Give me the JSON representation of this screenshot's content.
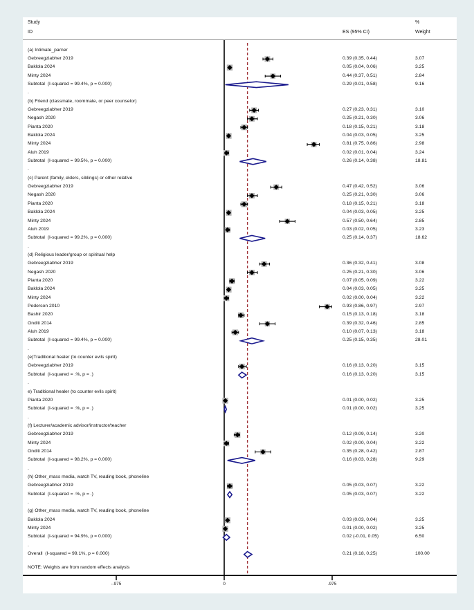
{
  "header": {
    "study": "Study",
    "id": "ID",
    "es": "ES (95% CI)",
    "pct": "%",
    "weight": "Weight"
  },
  "note": "NOTE: Weights are from random effects analysis",
  "colors": {
    "background": "#e6eef0",
    "figure": "#ffffff",
    "axis": "#000000",
    "zero_line": "#000000",
    "dashed_overall_line": "#a03238",
    "diamond_outline": "#1b1b8e",
    "weight_box": "#b5b5b5",
    "text": "#111111"
  },
  "chart_data": {
    "type": "forest",
    "xticks": [
      -0.975,
      0,
      0.975
    ],
    "tick_labels": [
      "-.975",
      "0",
      ".975"
    ],
    "zero_line": 0,
    "dashed_line_at": 0.21,
    "legend_position": "none",
    "grid": false,
    "groups": [
      {
        "label": "(a) Intimate_parner",
        "studies": [
          {
            "label": "Gebreegziabher 2019",
            "es": 0.39,
            "lo": 0.35,
            "hi": 0.44,
            "weight": 3.07,
            "es_text": "0.39 (0.35, 0.44)",
            "weight_text": "3.07"
          },
          {
            "label": "Baklola 2024",
            "es": 0.05,
            "lo": 0.04,
            "hi": 0.06,
            "weight": 3.25,
            "es_text": "0.05 (0.04, 0.06)",
            "weight_text": "3.25"
          },
          {
            "label": "Minty 2024",
            "es": 0.44,
            "lo": 0.37,
            "hi": 0.51,
            "weight": 2.84,
            "es_text": "0.44 (0.37, 0.51)",
            "weight_text": "2.84"
          }
        ],
        "subtotal": {
          "label": "Subtotal  (I-squared = 99.4%, p = 0.000)",
          "es": 0.29,
          "lo": 0.01,
          "hi": 0.58,
          "es_text": "0.29 (0.01, 0.58)",
          "weight_text": "9.16"
        }
      },
      {
        "label": "(b) Friend (classmate, roommate, or peer counselor)",
        "studies": [
          {
            "label": "Gebreegziabher 2019",
            "es": 0.27,
            "lo": 0.23,
            "hi": 0.31,
            "weight": 3.1,
            "es_text": "0.27 (0.23, 0.31)",
            "weight_text": "3.10"
          },
          {
            "label": "Negash 2020",
            "es": 0.25,
            "lo": 0.21,
            "hi": 0.3,
            "weight": 3.06,
            "es_text": "0.25 (0.21, 0.30)",
            "weight_text": "3.06"
          },
          {
            "label": "Pianta 2020",
            "es": 0.18,
            "lo": 0.15,
            "hi": 0.21,
            "weight": 3.18,
            "es_text": "0.18 (0.15, 0.21)",
            "weight_text": "3.18"
          },
          {
            "label": "Baklola 2024",
            "es": 0.04,
            "lo": 0.03,
            "hi": 0.05,
            "weight": 3.25,
            "es_text": "0.04 (0.03, 0.05)",
            "weight_text": "3.25"
          },
          {
            "label": "Minty 2024",
            "es": 0.81,
            "lo": 0.75,
            "hi": 0.86,
            "weight": 2.98,
            "es_text": "0.81 (0.75, 0.86)",
            "weight_text": "2.98"
          },
          {
            "label": "Aluh 2019",
            "es": 0.02,
            "lo": 0.01,
            "hi": 0.04,
            "weight": 3.24,
            "es_text": "0.02 (0.01, 0.04)",
            "weight_text": "3.24"
          }
        ],
        "subtotal": {
          "label": "Subtotal  (I-squared = 99.5%, p = 0.000)",
          "es": 0.26,
          "lo": 0.14,
          "hi": 0.38,
          "es_text": "0.26 (0.14, 0.38)",
          "weight_text": "18.81"
        }
      },
      {
        "label": "(c) Parent (family, elders, siblings) or other relative",
        "studies": [
          {
            "label": "Gebreegziabher 2019",
            "es": 0.47,
            "lo": 0.42,
            "hi": 0.52,
            "weight": 3.06,
            "es_text": "0.47 (0.42, 0.52)",
            "weight_text": "3.06"
          },
          {
            "label": "Negash 2020",
            "es": 0.25,
            "lo": 0.21,
            "hi": 0.3,
            "weight": 3.06,
            "es_text": "0.25 (0.21, 0.30)",
            "weight_text": "3.06"
          },
          {
            "label": "Pianta 2020",
            "es": 0.18,
            "lo": 0.15,
            "hi": 0.21,
            "weight": 3.18,
            "es_text": "0.18 (0.15, 0.21)",
            "weight_text": "3.18"
          },
          {
            "label": "Baklola 2024",
            "es": 0.04,
            "lo": 0.03,
            "hi": 0.05,
            "weight": 3.25,
            "es_text": "0.04 (0.03, 0.05)",
            "weight_text": "3.25"
          },
          {
            "label": "Minty 2024",
            "es": 0.57,
            "lo": 0.5,
            "hi": 0.64,
            "weight": 2.85,
            "es_text": "0.57 (0.50, 0.64)",
            "weight_text": "2.85"
          },
          {
            "label": "Aluh 2019",
            "es": 0.03,
            "lo": 0.02,
            "hi": 0.05,
            "weight": 3.23,
            "es_text": "0.03 (0.02, 0.05)",
            "weight_text": "3.23"
          }
        ],
        "subtotal": {
          "label": "Subtotal  (I-squared = 99.2%, p = 0.000)",
          "es": 0.25,
          "lo": 0.14,
          "hi": 0.37,
          "es_text": "0.25 (0.14, 0.37)",
          "weight_text": "18.62"
        }
      },
      {
        "label": "(d) Religious leader/group or spiritual help",
        "studies": [
          {
            "label": "Gebreegziabher 2019",
            "es": 0.36,
            "lo": 0.32,
            "hi": 0.41,
            "weight": 3.08,
            "es_text": "0.36 (0.32, 0.41)",
            "weight_text": "3.08"
          },
          {
            "label": "Negash 2020",
            "es": 0.25,
            "lo": 0.21,
            "hi": 0.3,
            "weight": 3.06,
            "es_text": "0.25 (0.21, 0.30)",
            "weight_text": "3.06"
          },
          {
            "label": "Pianta 2020",
            "es": 0.07,
            "lo": 0.05,
            "hi": 0.09,
            "weight": 3.22,
            "es_text": "0.07 (0.05, 0.09)",
            "weight_text": "3.22"
          },
          {
            "label": "Baklola 2024",
            "es": 0.04,
            "lo": 0.03,
            "hi": 0.05,
            "weight": 3.25,
            "es_text": "0.04 (0.03, 0.05)",
            "weight_text": "3.25"
          },
          {
            "label": "Minty 2024",
            "es": 0.02,
            "lo": 0.0,
            "hi": 0.04,
            "weight": 3.22,
            "es_text": "0.02 (0.00, 0.04)",
            "weight_text": "3.22"
          },
          {
            "label": "Pederson 2010",
            "es": 0.93,
            "lo": 0.86,
            "hi": 0.97,
            "weight": 2.97,
            "es_text": "0.93 (0.86, 0.97)",
            "weight_text": "2.97"
          },
          {
            "label": "Bashir 2020",
            "es": 0.15,
            "lo": 0.13,
            "hi": 0.18,
            "weight": 3.18,
            "es_text": "0.15 (0.13, 0.18)",
            "weight_text": "3.18"
          },
          {
            "label": "Onditi 2014",
            "es": 0.39,
            "lo": 0.32,
            "hi": 0.46,
            "weight": 2.85,
            "es_text": "0.39 (0.32, 0.46)",
            "weight_text": "2.85"
          },
          {
            "label": "Aluh 2019",
            "es": 0.1,
            "lo": 0.07,
            "hi": 0.13,
            "weight": 3.18,
            "es_text": "0.10 (0.07, 0.13)",
            "weight_text": "3.18"
          }
        ],
        "subtotal": {
          "label": "Subtotal  (I-squared = 99.4%, p = 0.000)",
          "es": 0.25,
          "lo": 0.15,
          "hi": 0.35,
          "es_text": "0.25 (0.15, 0.35)",
          "weight_text": "28.01"
        }
      },
      {
        "label": "(e)Traditional healer (to counter evils spirit)",
        "studies": [
          {
            "label": "Gebreegziabher 2019",
            "es": 0.16,
            "lo": 0.13,
            "hi": 0.2,
            "weight": 3.15,
            "es_text": "0.16 (0.13, 0.20)",
            "weight_text": "3.15"
          }
        ],
        "subtotal": {
          "label": "Subtotal  (I-squared = .%, p = .)",
          "es": 0.16,
          "lo": 0.13,
          "hi": 0.2,
          "es_text": "0.16 (0.13, 0.20)",
          "weight_text": "3.15"
        }
      },
      {
        "label": "e) Traditional healer (to counter evils spirit)",
        "studies": [
          {
            "label": "Pianta 2020",
            "es": 0.01,
            "lo": 0.0,
            "hi": 0.02,
            "weight": 3.25,
            "es_text": "0.01 (0.00, 0.02)",
            "weight_text": "3.25"
          }
        ],
        "subtotal": {
          "label": "Subtotal  (I-squared = .%, p = .)",
          "es": 0.01,
          "lo": 0.0,
          "hi": 0.02,
          "es_text": "0.01 (0.00, 0.02)",
          "weight_text": "3.25"
        }
      },
      {
        "label": "(f) Lecturer/academic advisor/instructor/teacher",
        "studies": [
          {
            "label": "Gebreegziabher 2019",
            "es": 0.12,
            "lo": 0.09,
            "hi": 0.14,
            "weight": 3.2,
            "es_text": "0.12 (0.09, 0.14)",
            "weight_text": "3.20"
          },
          {
            "label": "Minty 2024",
            "es": 0.02,
            "lo": 0.0,
            "hi": 0.04,
            "weight": 3.22,
            "es_text": "0.02 (0.00, 0.04)",
            "weight_text": "3.22"
          },
          {
            "label": "Onditi 2014",
            "es": 0.35,
            "lo": 0.28,
            "hi": 0.42,
            "weight": 2.87,
            "es_text": "0.35 (0.28, 0.42)",
            "weight_text": "2.87"
          }
        ],
        "subtotal": {
          "label": "Subtotal  (I-squared = 98.2%, p = 0.000)",
          "es": 0.16,
          "lo": 0.03,
          "hi": 0.28,
          "es_text": "0.16 (0.03, 0.28)",
          "weight_text": "9.29"
        }
      },
      {
        "label": "(h) Other_mass media, watch TV, reading book, phoneline",
        "studies": [
          {
            "label": "Gebreegziabher 2019",
            "es": 0.05,
            "lo": 0.03,
            "hi": 0.07,
            "weight": 3.22,
            "es_text": "0.05 (0.03, 0.07)",
            "weight_text": "3.22"
          }
        ],
        "subtotal": {
          "label": "Subtotal  (I-squared = .%, p = .)",
          "es": 0.05,
          "lo": 0.03,
          "hi": 0.07,
          "es_text": "0.05 (0.03, 0.07)",
          "weight_text": "3.22"
        }
      },
      {
        "label": "(g) Other_mass media, watch TV, reading book, phoneline",
        "studies": [
          {
            "label": "Baklola 2024",
            "es": 0.03,
            "lo": 0.03,
            "hi": 0.04,
            "weight": 3.25,
            "es_text": "0.03 (0.03, 0.04)",
            "weight_text": "3.25"
          },
          {
            "label": "Minty 2024",
            "es": 0.01,
            "lo": 0.0,
            "hi": 0.02,
            "weight": 3.25,
            "es_text": "0.01 (0.00, 0.02)",
            "weight_text": "3.25"
          }
        ],
        "subtotal": {
          "label": "Subtotal  (I-squared = 94.9%, p = 0.000)",
          "es": 0.02,
          "lo": -0.01,
          "hi": 0.05,
          "es_text": "0.02 (-0.01, 0.05)",
          "weight_text": "6.50"
        }
      }
    ],
    "overall": {
      "label": "Overall  (I-squared = 99.1%, p = 0.000)",
      "es": 0.21,
      "lo": 0.18,
      "hi": 0.25,
      "es_text": "0.21 (0.18, 0.25)",
      "weight_text": "100.00"
    }
  }
}
